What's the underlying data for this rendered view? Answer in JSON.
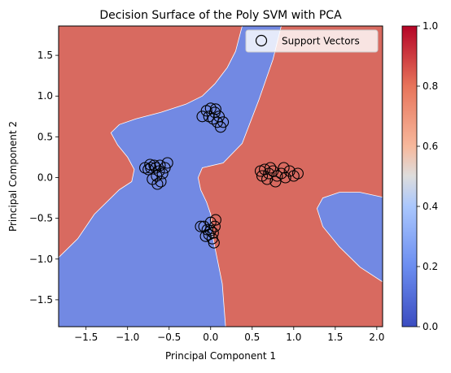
{
  "chart_data": {
    "type": "scatter",
    "title": "Decision Surface of the Poly SVM with PCA",
    "xlabel": "Principal Component 1",
    "ylabel": "Principal Component 2",
    "xlim": [
      -1.83,
      2.07
    ],
    "ylim": [
      -1.83,
      1.86
    ],
    "xticks": [
      -1.5,
      -1.0,
      -0.5,
      0.0,
      0.5,
      1.0,
      1.5,
      2.0
    ],
    "xtick_labels": [
      "−1.5",
      "−1.0",
      "−0.5",
      "0.0",
      "0.5",
      "1.0",
      "1.5",
      "2.0"
    ],
    "yticks": [
      -1.5,
      -1.0,
      -0.5,
      0.0,
      0.5,
      1.0,
      1.5
    ],
    "ytick_labels": [
      "−1.5",
      "−1.0",
      "−0.5",
      "0.0",
      "0.5",
      "1.0",
      "1.5"
    ],
    "grid": false,
    "legend": {
      "position": "top-right",
      "entries": [
        "Support Vectors"
      ]
    },
    "colorbar": {
      "range": [
        0.0,
        1.0
      ],
      "ticks": [
        0.0,
        0.2,
        0.4,
        0.6,
        0.8,
        1.0
      ],
      "tick_labels": [
        "0.0",
        "0.2",
        "0.4",
        "0.6",
        "0.8",
        "1.0"
      ],
      "colormap": "coolwarm"
    },
    "region_colors": {
      "class_0": "#7289e3",
      "class_1": "#d86a60"
    },
    "regions": [
      {
        "class": "class_0",
        "polygon": [
          [
            -1.83,
            -1.83
          ],
          [
            0.18,
            -1.83
          ],
          [
            0.14,
            -1.3
          ],
          [
            0.08,
            -1.0
          ],
          [
            0.02,
            -0.7
          ],
          [
            0.0,
            -0.45
          ],
          [
            -0.05,
            -0.3
          ],
          [
            -0.12,
            -0.15
          ],
          [
            -0.15,
            0.0
          ],
          [
            -0.1,
            0.12
          ],
          [
            0.15,
            0.18
          ],
          [
            0.38,
            0.42
          ],
          [
            0.58,
            0.95
          ],
          [
            0.75,
            1.45
          ],
          [
            0.85,
            1.86
          ],
          [
            0.38,
            1.86
          ],
          [
            0.3,
            1.55
          ],
          [
            0.2,
            1.35
          ],
          [
            0.05,
            1.15
          ],
          [
            -0.1,
            1.0
          ],
          [
            -0.3,
            0.9
          ],
          [
            -0.6,
            0.8
          ],
          [
            -0.9,
            0.72
          ],
          [
            -1.1,
            0.65
          ],
          [
            -1.2,
            0.55
          ],
          [
            -1.12,
            0.4
          ],
          [
            -1.0,
            0.25
          ],
          [
            -0.92,
            0.1
          ],
          [
            -0.95,
            -0.05
          ],
          [
            -1.1,
            -0.15
          ],
          [
            -1.4,
            -0.45
          ],
          [
            -1.6,
            -0.75
          ],
          [
            -1.83,
            -0.98
          ]
        ]
      },
      {
        "class": "class_0",
        "polygon": [
          [
            2.07,
            -1.28
          ],
          [
            1.8,
            -1.1
          ],
          [
            1.55,
            -0.85
          ],
          [
            1.35,
            -0.6
          ],
          [
            1.28,
            -0.38
          ],
          [
            1.35,
            -0.25
          ],
          [
            1.55,
            -0.18
          ],
          [
            1.8,
            -0.18
          ],
          [
            2.07,
            -0.24
          ]
        ]
      }
    ],
    "series": [
      {
        "points": [
          [
            -0.72,
            0.12
          ],
          [
            -0.68,
            0.15
          ],
          [
            -0.62,
            0.08
          ],
          [
            -0.75,
            0.1
          ],
          [
            -0.65,
            0.02
          ],
          [
            -0.58,
            0.05
          ],
          [
            -0.7,
            -0.02
          ],
          [
            -0.6,
            -0.05
          ],
          [
            -0.66,
            0.12
          ],
          [
            -0.73,
            0.16
          ],
          [
            -0.55,
            0.12
          ],
          [
            -0.52,
            0.18
          ],
          [
            -0.64,
            -0.08
          ],
          [
            -0.61,
            0.15
          ],
          [
            -0.79,
            0.12
          ]
        ]
      },
      {
        "points": [
          [
            -0.05,
            0.82
          ],
          [
            0.0,
            0.85
          ],
          [
            0.05,
            0.8
          ],
          [
            -0.02,
            0.75
          ],
          [
            0.03,
            0.72
          ],
          [
            0.08,
            0.68
          ],
          [
            0.12,
            0.62
          ],
          [
            0.1,
            0.75
          ],
          [
            -0.1,
            0.75
          ],
          [
            0.06,
            0.84
          ],
          [
            0.15,
            0.68
          ]
        ]
      },
      {
        "points": [
          [
            0.62,
            0.02
          ],
          [
            0.7,
            0.05
          ],
          [
            0.75,
            0.08
          ],
          [
            0.8,
            0.02
          ],
          [
            0.68,
            -0.02
          ],
          [
            0.85,
            0.05
          ],
          [
            0.9,
            0.0
          ],
          [
            0.95,
            0.08
          ],
          [
            1.0,
            0.02
          ],
          [
            0.72,
            0.12
          ],
          [
            0.65,
            0.1
          ],
          [
            0.78,
            -0.05
          ],
          [
            0.88,
            0.12
          ],
          [
            1.05,
            0.05
          ],
          [
            0.6,
            0.08
          ]
        ]
      },
      {
        "points": [
          [
            -0.08,
            -0.6
          ],
          [
            -0.04,
            -0.64
          ],
          [
            0.0,
            -0.55
          ],
          [
            0.03,
            -0.68
          ],
          [
            0.05,
            -0.6
          ],
          [
            -0.02,
            -0.7
          ],
          [
            0.02,
            -0.75
          ],
          [
            -0.06,
            -0.72
          ],
          [
            0.04,
            -0.8
          ],
          [
            0.0,
            -0.65
          ],
          [
            0.06,
            -0.52
          ],
          [
            -0.12,
            -0.6
          ]
        ]
      }
    ]
  }
}
